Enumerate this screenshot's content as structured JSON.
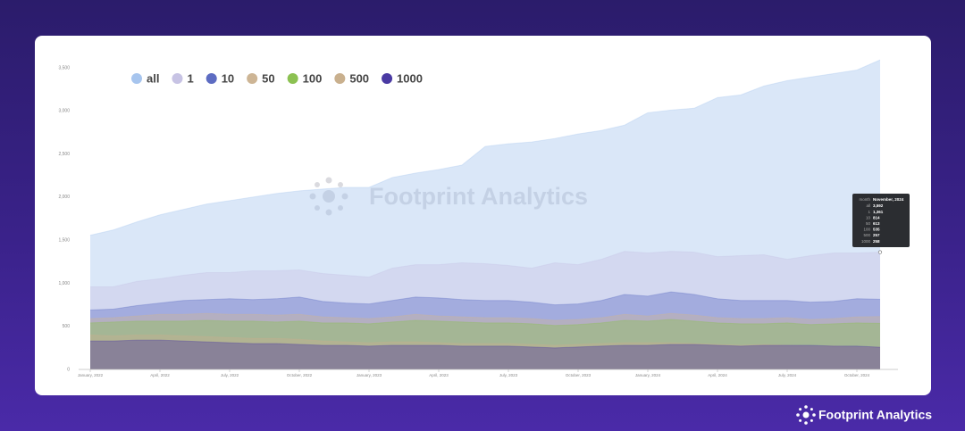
{
  "chart_data": {
    "type": "area",
    "categories": [
      "January, 2022",
      null,
      null,
      "April, 2022",
      null,
      null,
      "July, 2022",
      null,
      null,
      "October, 2022",
      null,
      null,
      "January, 2023",
      null,
      null,
      "April, 2023",
      null,
      null,
      "July, 2023",
      null,
      null,
      "October, 2023",
      null,
      null,
      "January, 2024",
      null,
      null,
      "April, 2024",
      null,
      null,
      "July, 2024",
      null,
      null,
      "October, 2024",
      null
    ],
    "series": [
      {
        "name": "all",
        "color": "#a7c5ee",
        "values": [
          1557,
          1619,
          1711,
          1794,
          1856,
          1918,
          1959,
          2000,
          2041,
          2072,
          2093,
          2113,
          2113,
          2227,
          2278,
          2320,
          2371,
          2588,
          2619,
          2639,
          2680,
          2732,
          2773,
          2835,
          2979,
          3010,
          3031,
          3155,
          3186,
          3289,
          3351,
          3392,
          3433,
          3474,
          3592
        ]
      },
      {
        "name": "1",
        "color": "#c7c3e4",
        "values": [
          959,
          959,
          1021,
          1052,
          1093,
          1124,
          1124,
          1144,
          1144,
          1155,
          1113,
          1093,
          1072,
          1175,
          1216,
          1216,
          1237,
          1227,
          1206,
          1175,
          1237,
          1216,
          1278,
          1371,
          1351,
          1371,
          1361,
          1309,
          1320,
          1330,
          1278,
          1320,
          1351,
          1351,
          1361
        ]
      },
      {
        "name": "10",
        "color": "#5d6cc2",
        "values": [
          690,
          700,
          740,
          770,
          800,
          810,
          820,
          810,
          820,
          840,
          790,
          770,
          760,
          800,
          840,
          830,
          810,
          800,
          800,
          780,
          750,
          760,
          800,
          870,
          850,
          900,
          870,
          820,
          800,
          800,
          800,
          780,
          790,
          820,
          814
        ]
      },
      {
        "name": "50",
        "color": "#cdb595",
        "values": [
          590,
          600,
          620,
          640,
          640,
          650,
          640,
          640,
          630,
          640,
          610,
          600,
          590,
          610,
          640,
          620,
          610,
          600,
          600,
          590,
          570,
          580,
          600,
          640,
          620,
          650,
          630,
          600,
          590,
          590,
          600,
          580,
          590,
          610,
          613
        ]
      },
      {
        "name": "100",
        "color": "#8cc152",
        "values": [
          540,
          550,
          560,
          560,
          560,
          570,
          560,
          560,
          550,
          560,
          540,
          540,
          530,
          550,
          570,
          560,
          550,
          540,
          540,
          530,
          510,
          520,
          540,
          570,
          560,
          580,
          560,
          540,
          530,
          530,
          540,
          520,
          530,
          540,
          535
        ]
      },
      {
        "name": "500",
        "color": "#c9b08e",
        "values": [
          400,
          390,
          400,
          400,
          390,
          380,
          370,
          360,
          360,
          350,
          330,
          320,
          310,
          320,
          320,
          310,
          300,
          300,
          300,
          290,
          280,
          290,
          300,
          310,
          310,
          310,
          300,
          290,
          280,
          290,
          280,
          270,
          270,
          260,
          257
        ]
      },
      {
        "name": "1000",
        "color": "#4a3aa3",
        "values": [
          330,
          330,
          340,
          340,
          330,
          320,
          310,
          300,
          300,
          290,
          280,
          280,
          270,
          280,
          280,
          280,
          270,
          270,
          270,
          260,
          250,
          260,
          270,
          280,
          280,
          290,
          290,
          280,
          270,
          280,
          280,
          280,
          270,
          270,
          258
        ]
      }
    ],
    "ylim": [
      0,
      3500
    ],
    "yticks": [
      0,
      500,
      {
        "value": 1000,
        "label": "1,000"
      },
      {
        "value": 1500,
        "label": "1,500"
      },
      {
        "value": 2000,
        "label": "2,000"
      },
      {
        "value": 2500,
        "label": "2,500"
      },
      {
        "value": 3000,
        "label": "3,000"
      },
      {
        "value": 3500,
        "label": "3,500"
      }
    ],
    "grid": false,
    "legend": "top-left",
    "stacked": false
  },
  "tooltip": {
    "title_label": "month",
    "title": "November, 2024",
    "rows": [
      {
        "label": "all",
        "value": "3,592"
      },
      {
        "label": "1",
        "value": "1,361"
      },
      {
        "label": "10",
        "value": "814"
      },
      {
        "label": "50",
        "value": "613"
      },
      {
        "label": "100",
        "value": "535"
      },
      {
        "label": "500",
        "value": "257"
      },
      {
        "label": "1000",
        "value": "258"
      }
    ]
  },
  "watermark": "Footprint Analytics",
  "brand": "Footprint Analytics"
}
